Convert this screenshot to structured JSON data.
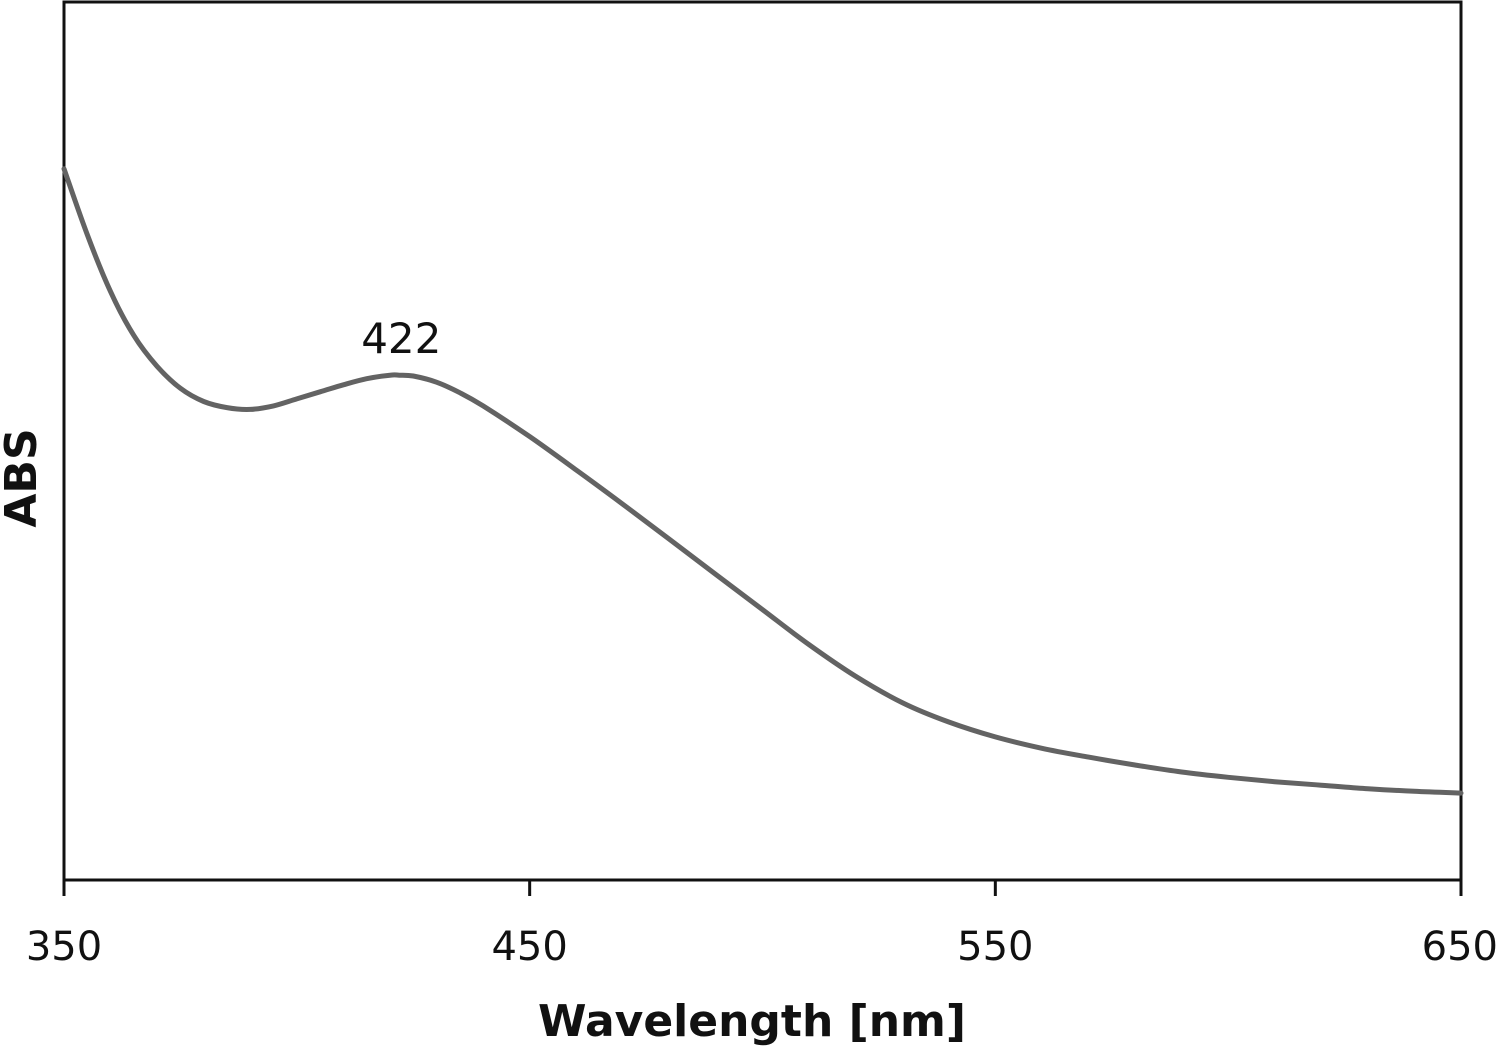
{
  "chart_data": {
    "type": "line",
    "title": "",
    "xlabel": "Wavelength [nm]",
    "ylabel": "ABS",
    "xlim": [
      350,
      650
    ],
    "ylim": [
      0,
      1
    ],
    "x_ticks": [
      "350",
      "450",
      "550",
      "650"
    ],
    "y_ticks": [],
    "grid": false,
    "legend": "none",
    "line_color": "#636363",
    "series": [
      {
        "x": [
          350,
          355,
          360,
          365,
          370,
          375,
          380,
          385,
          390,
          395,
          400,
          405,
          410,
          415,
          420,
          422,
          425,
          430,
          435,
          440,
          450,
          460,
          470,
          480,
          490,
          500,
          510,
          520,
          530,
          540,
          550,
          560,
          570,
          580,
          590,
          600,
          610,
          620,
          630,
          640,
          650
        ],
        "y": [
          0.81,
          0.735,
          0.67,
          0.62,
          0.585,
          0.56,
          0.545,
          0.538,
          0.536,
          0.54,
          0.548,
          0.556,
          0.564,
          0.571,
          0.575,
          0.575,
          0.574,
          0.567,
          0.555,
          0.54,
          0.505,
          0.467,
          0.428,
          0.388,
          0.348,
          0.308,
          0.268,
          0.232,
          0.202,
          0.18,
          0.163,
          0.15,
          0.14,
          0.131,
          0.123,
          0.117,
          0.112,
          0.108,
          0.104,
          0.101,
          0.099
        ]
      }
    ],
    "annotations": [
      {
        "text": "422",
        "x": 422,
        "y": 0.575
      }
    ]
  }
}
